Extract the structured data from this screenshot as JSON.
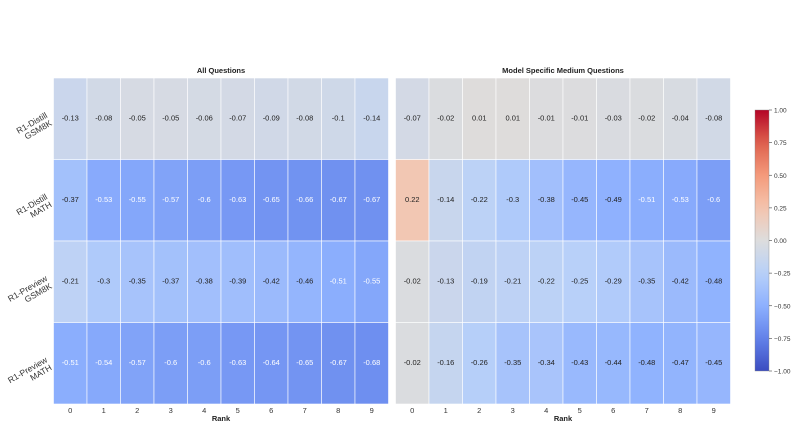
{
  "chart_data": [
    {
      "type": "heatmap",
      "title": "All Questions",
      "xlabel": "Rank",
      "x_ticks": [
        "0",
        "1",
        "2",
        "3",
        "4",
        "5",
        "6",
        "7",
        "8",
        "9"
      ],
      "y_ticks": [
        [
          "R1-Distill",
          "GSM8K"
        ],
        [
          "R1-Distill",
          "MATH"
        ],
        [
          "R1-Preview",
          "GSM8K"
        ],
        [
          "R1-Preview",
          "MATH"
        ]
      ],
      "values": [
        [
          -0.13,
          -0.08,
          -0.05,
          -0.05,
          -0.06,
          -0.07,
          -0.09,
          -0.08,
          -0.1,
          -0.14
        ],
        [
          -0.37,
          -0.53,
          -0.55,
          -0.57,
          -0.6,
          -0.63,
          -0.65,
          -0.66,
          -0.67,
          -0.67
        ],
        [
          -0.21,
          -0.3,
          -0.35,
          -0.37,
          -0.38,
          -0.39,
          -0.42,
          -0.46,
          -0.51,
          -0.55
        ],
        [
          -0.51,
          -0.54,
          -0.57,
          -0.6,
          -0.6,
          -0.63,
          -0.64,
          -0.65,
          -0.67,
          -0.68
        ]
      ]
    },
    {
      "type": "heatmap",
      "title": "Model Specific Medium Questions",
      "xlabel": "Rank",
      "x_ticks": [
        "0",
        "1",
        "2",
        "3",
        "4",
        "5",
        "6",
        "7",
        "8",
        "9"
      ],
      "values": [
        [
          -0.07,
          -0.02,
          0.01,
          0.01,
          -0.01,
          -0.01,
          -0.03,
          -0.02,
          -0.04,
          -0.08
        ],
        [
          0.22,
          -0.14,
          -0.22,
          -0.3,
          -0.38,
          -0.45,
          -0.49,
          -0.51,
          -0.53,
          -0.6
        ],
        [
          -0.02,
          -0.13,
          -0.19,
          -0.21,
          -0.22,
          -0.25,
          -0.29,
          -0.35,
          -0.42,
          -0.48
        ],
        [
          -0.02,
          -0.16,
          -0.26,
          -0.35,
          -0.34,
          -0.43,
          -0.44,
          -0.48,
          -0.47,
          -0.45
        ]
      ]
    }
  ],
  "colorbar": {
    "colormap": "coolwarm",
    "range": [
      -1.0,
      1.0
    ],
    "ticks": [
      "1.00",
      "0.75",
      "0.50",
      "0.25",
      "0.00",
      "−0.25",
      "−0.50",
      "−0.75",
      "−1.00"
    ]
  }
}
